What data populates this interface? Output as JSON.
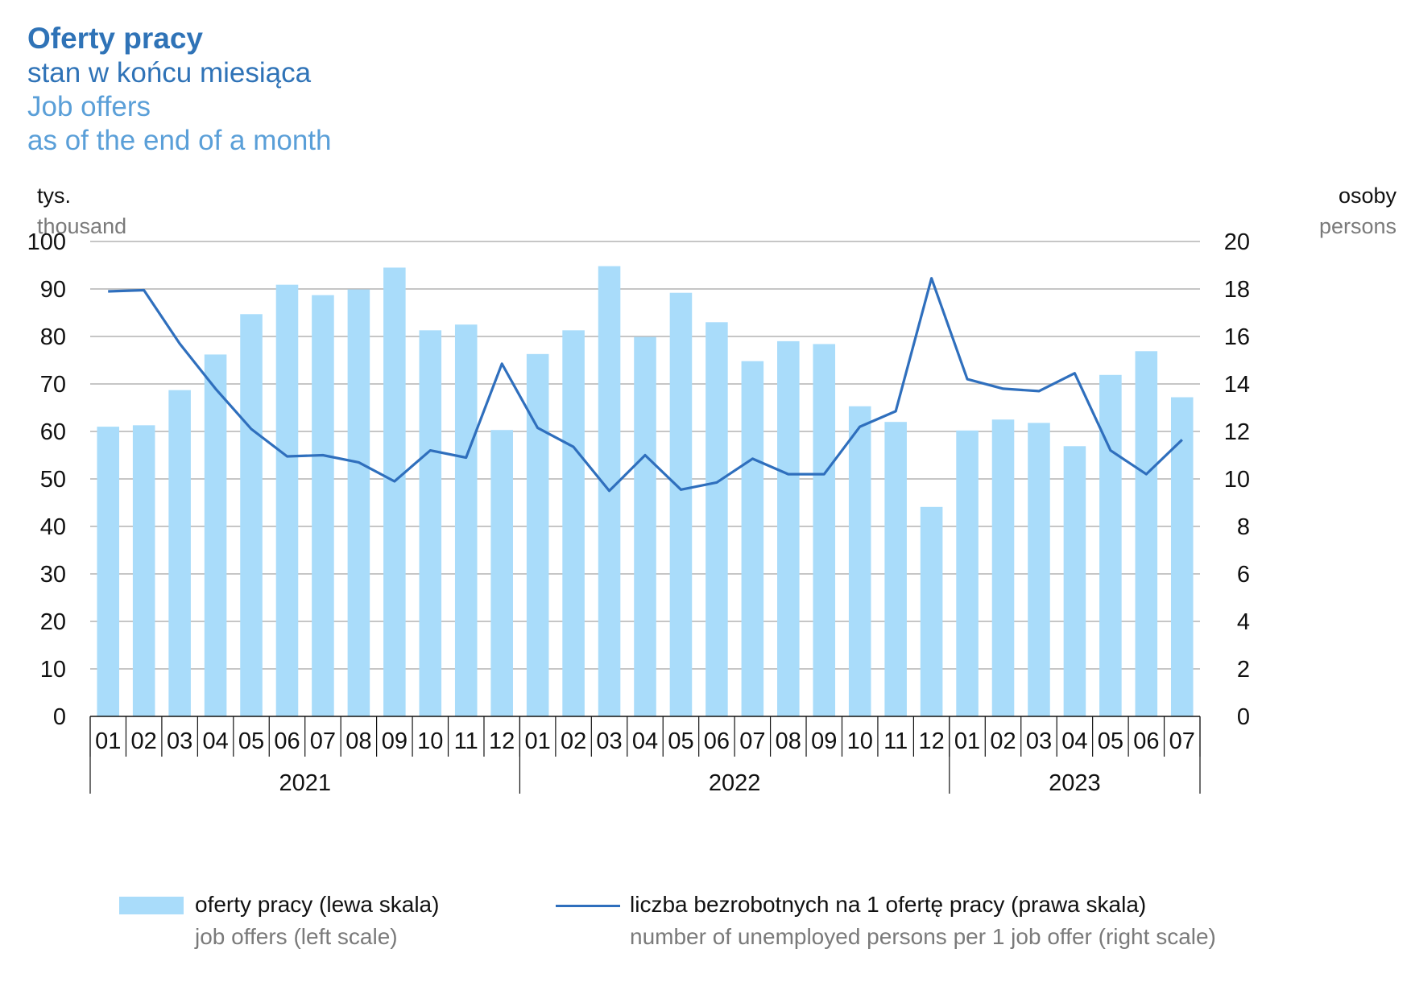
{
  "title_pl": "Oferty pracy",
  "subtitle_pl": "stan w końcu miesiąca",
  "title_en": "Job offers",
  "subtitle_en": "as of the end of a month",
  "left_unit": {
    "pl": "tys.",
    "en": "thousand"
  },
  "right_unit": {
    "pl": "osoby",
    "en": "persons"
  },
  "legend": {
    "bars_pl": "oferty pracy (lewa skala)",
    "bars_en": "job offers (left scale)",
    "line_pl": "liczba bezrobotnych na 1 ofertę pracy (prawa skala)",
    "line_en": "number of unemployed persons per 1 job offer (right scale)"
  },
  "colors": {
    "bars": "#a9dcfa",
    "line": "#2f6fbd",
    "grid": "#b3b3b3",
    "title": "#2f73b7",
    "title_en": "#5a9fd8"
  },
  "chart_data": {
    "type": "bar",
    "categories": [
      "01",
      "02",
      "03",
      "04",
      "05",
      "06",
      "07",
      "08",
      "09",
      "10",
      "11",
      "12",
      "01",
      "02",
      "03",
      "04",
      "05",
      "06",
      "07",
      "08",
      "09",
      "10",
      "11",
      "12",
      "01",
      "02",
      "03",
      "04",
      "05",
      "06",
      "07"
    ],
    "year_groups": [
      {
        "label": "2021",
        "count": 12
      },
      {
        "label": "2022",
        "count": 12
      },
      {
        "label": "2023",
        "count": 7
      }
    ],
    "series": [
      {
        "name": "oferty pracy (lewa skala)",
        "type": "bar",
        "axis": "left",
        "values": [
          61.0,
          61.3,
          68.7,
          76.2,
          84.7,
          90.9,
          88.7,
          89.9,
          94.5,
          81.3,
          82.5,
          60.3,
          76.3,
          81.3,
          94.8,
          79.9,
          89.2,
          83.0,
          74.8,
          79.0,
          78.4,
          65.3,
          62.0,
          44.1,
          60.2,
          62.5,
          61.8,
          56.9,
          71.9,
          76.9,
          67.2
        ]
      },
      {
        "name": "liczba bezrobotnych na 1 ofertę pracy (prawa skala)",
        "type": "line",
        "axis": "right",
        "values": [
          17.9,
          17.95,
          15.7,
          13.8,
          12.1,
          10.95,
          11.0,
          10.7,
          9.9,
          11.2,
          10.9,
          14.85,
          12.15,
          11.35,
          9.5,
          11.0,
          9.55,
          9.85,
          10.85,
          10.2,
          10.2,
          12.2,
          12.85,
          18.45,
          14.2,
          13.8,
          13.7,
          14.45,
          11.2,
          10.2,
          11.65
        ]
      }
    ],
    "ylim_left": [
      0,
      100
    ],
    "yticks_left": [
      "0",
      "10",
      "20",
      "30",
      "40",
      "50",
      "60",
      "70",
      "80",
      "90",
      "100"
    ],
    "ylim_right": [
      0,
      20
    ],
    "yticks_right": [
      "0",
      "2",
      "4",
      "6",
      "8",
      "10",
      "12",
      "14",
      "16",
      "18",
      "20"
    ],
    "grid": true,
    "legend_position": "bottom"
  }
}
